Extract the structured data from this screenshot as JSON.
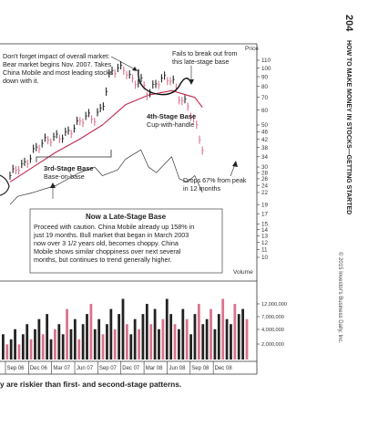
{
  "page": {
    "number": "204",
    "running_head": "HOW TO MAKE MONEY IN STOCKS—GETTING STARTED",
    "copyright": "© 2015 Investor's Business Daily, Inc.",
    "caption": "y are riskier than first- and second-stage patterns."
  },
  "chart_data": {
    "type": "line",
    "price_axis": {
      "label": "Price",
      "ticks": [
        110,
        100,
        90,
        80,
        70,
        60,
        50,
        46,
        42,
        38,
        34,
        30,
        28,
        26,
        24,
        22,
        19,
        17,
        15,
        14,
        13,
        12,
        11,
        10
      ],
      "scale": "log"
    },
    "volume_axis": {
      "label": "Volume",
      "ticks": [
        "12,000,000",
        "7,000,000",
        "4,000,000",
        "2,000,000"
      ]
    },
    "x_axis": {
      "ticks": [
        "Sep 06",
        "Dec 06",
        "Mar 07",
        "Jun 07",
        "Sep 07",
        "Dec 07",
        "Mar 08",
        "Jun 08",
        "Sep 08",
        "Dec 08"
      ]
    },
    "series": [
      {
        "name": "",
        "kind": "price",
        "x": [
          "Sep 06",
          "Oct 06",
          "Nov 06",
          "Dec 06",
          "Jan 07",
          "Feb 07",
          "Mar 07",
          "Apr 07",
          "May 07",
          "Jun 07",
          "Jul 07",
          "Aug 07",
          "Sep 07",
          "Oct 07",
          "Nov 07",
          "Dec 07",
          "Jan 08",
          "Feb 08",
          "Mar 08",
          "Apr 08",
          "May 08",
          "Jun 08",
          "Jul 08",
          "Aug 08",
          "Sep 08",
          "Oct 08"
        ],
        "values": [
          27,
          30,
          31,
          36,
          40,
          42,
          43,
          44,
          47,
          52,
          56,
          54,
          62,
          95,
          100,
          98,
          84,
          86,
          72,
          84,
          88,
          88,
          70,
          64,
          52,
          38
        ]
      },
      {
        "name": "",
        "kind": "moving_average",
        "x": [
          "Sep 06",
          "Dec 06",
          "Mar 07",
          "Jun 07",
          "Sep 07",
          "Dec 07",
          "Mar 08",
          "Jun 08",
          "Sep 08",
          "Oct 08"
        ],
        "values": [
          25,
          30,
          36,
          42,
          50,
          64,
          72,
          76,
          70,
          62
        ]
      },
      {
        "name": "",
        "kind": "relative_strength",
        "x": [
          "Sep 06",
          "Oct 06",
          "Dec 06",
          "Mar 07",
          "Jun 07",
          "Aug 07",
          "Sep 07",
          "Nov 07",
          "Dec 07",
          "Feb 08",
          "Mar 08",
          "Apr 08",
          "Jun 08",
          "Jul 08",
          "Aug 08",
          "Sep 08",
          "Oct 08"
        ],
        "values": [
          19,
          21,
          22,
          24,
          28,
          30,
          27,
          29,
          33,
          37,
          30,
          28,
          34,
          26,
          25,
          27,
          22
        ]
      }
    ],
    "volume": [
      5,
      3,
      4,
      6,
      3,
      5,
      7,
      4,
      6,
      8,
      5,
      9,
      4,
      6,
      7,
      5,
      10,
      6,
      8,
      4,
      7,
      9,
      11,
      6,
      8,
      5,
      7,
      10,
      6,
      9,
      12,
      7,
      5,
      8,
      6,
      9,
      11,
      7,
      10,
      6,
      8,
      12,
      9,
      7,
      6,
      10,
      8,
      5,
      9,
      11,
      7,
      8,
      10,
      6,
      9,
      12,
      8,
      7,
      11,
      9,
      10,
      8
    ],
    "annotations": {
      "top_left": "Don't forget impact of overall market: Bear market begins Nov. 2007. Takes China Mobile and most leading stocks down with it.",
      "fails": "Fails to break out from this late-stage base",
      "fourth_title": "4th-Stage Base",
      "fourth_sub": "Cup-with-handle",
      "third_title": "3rd-Stage Base",
      "third_sub": "Base-on-base",
      "drops": "Drops 67% from peak in 12 months",
      "box_title": "Now a Late-Stage Base",
      "box_body": "Proceed with caution. China Mobile already up 158% in just 19 months. Bull market that began in March 2003 now over 3 1/2 years old, becomes choppy. China Mobile shows similar choppiness over next several months, but continues to trend generally higher."
    },
    "colors": {
      "up_bar": "#222222",
      "down_bar": "#d9738c",
      "moving_average": "#c0294d",
      "relative_strength": "#333333"
    }
  }
}
